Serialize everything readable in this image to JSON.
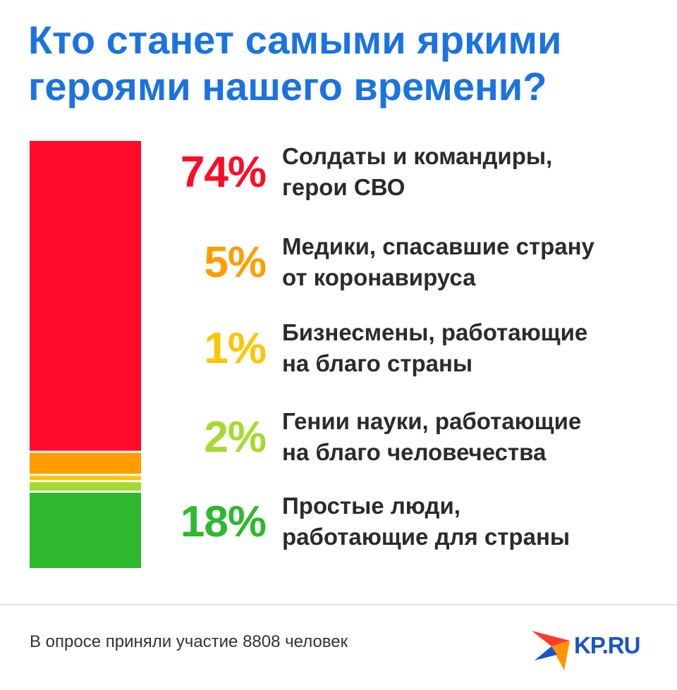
{
  "title": {
    "line1": "Кто станет самыми яркими",
    "line2": "героями нашего времени?"
  },
  "chart_data": {
    "type": "bar",
    "orientation": "stacked-vertical",
    "categories": [
      "Солдаты и командиры, герои СВО",
      "Медики, спасавшие страну от коронавируса",
      "Бизнесмены, работающие на благо страны",
      "Гении науки, работающие на благо человечества",
      "Простые люди, работающие для страны"
    ],
    "values": [
      74,
      5,
      1,
      2,
      18
    ],
    "value_labels": [
      "74%",
      "5%",
      "1%",
      "2%",
      "18%"
    ],
    "colors": [
      "#ff0a28",
      "#ff9d00",
      "#ffc402",
      "#a6d92f",
      "#2db82d"
    ],
    "label_lines": [
      [
        "Солдаты и командиры,",
        "герои СВО"
      ],
      [
        "Медики, спасавшие страну",
        "от коронавируса"
      ],
      [
        "Бизнесмены, работающие",
        "на благо страны"
      ],
      [
        "Гении науки, работающие",
        "на благо человечества"
      ],
      [
        "Простые люди,",
        "работающие для страны"
      ]
    ]
  },
  "footnote": "В опросе приняли участие 8808 человек",
  "logo": {
    "text": "KP.RU",
    "colors": [
      "#ff3b30",
      "#ff9500",
      "#1a55c8"
    ]
  }
}
